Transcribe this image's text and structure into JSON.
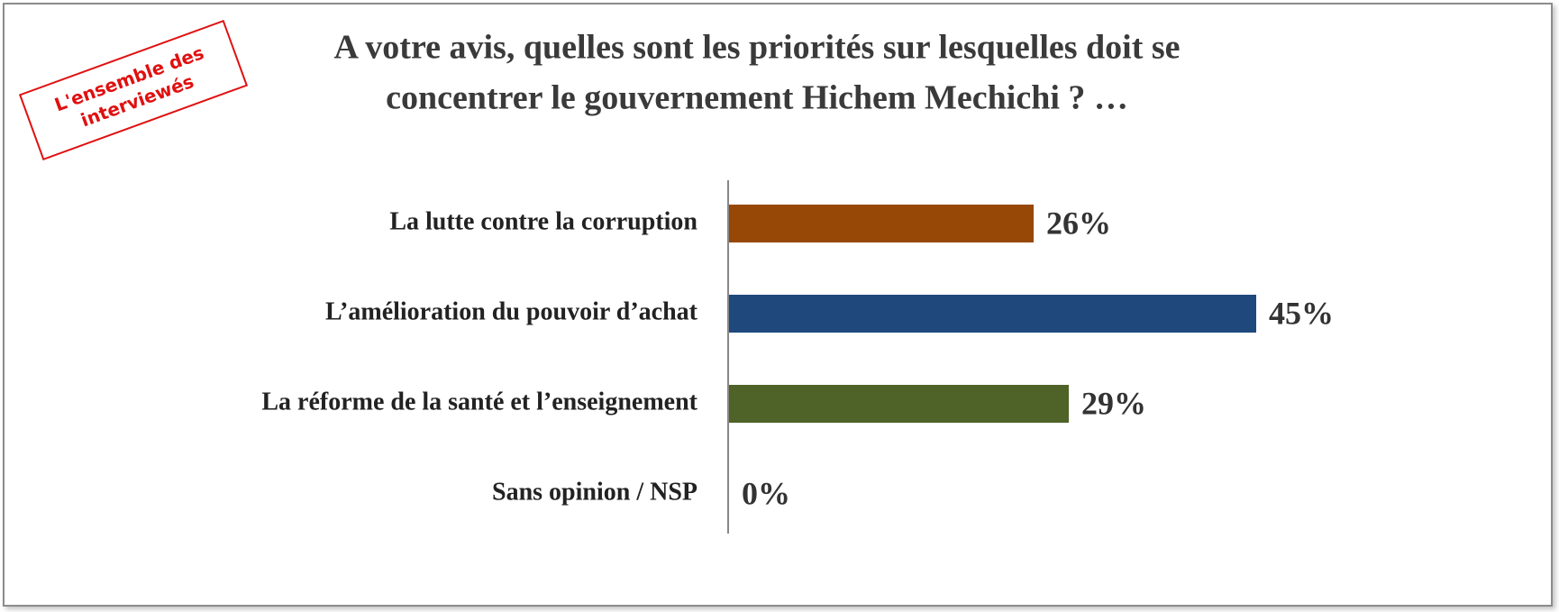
{
  "stamp": [
    "L'ensemble des",
    "interviewés"
  ],
  "chart_data": {
    "type": "bar",
    "orientation": "horizontal",
    "title": [
      "A votre avis, quelles sont les priorités sur lesquelles doit se",
      "concentrer le gouvernement Hichem Mechichi ? …"
    ],
    "categories": [
      "La lutte contre la corruption",
      "L’amélioration du pouvoir d’achat",
      "La  réforme de la santé et l’enseignement",
      "Sans opinion / NSP"
    ],
    "values": [
      26,
      45,
      29,
      0
    ],
    "value_labels": [
      "26%",
      "45%",
      "29%",
      "0%"
    ],
    "colors": [
      "#974706",
      "#1f497d",
      "#4f6228",
      "#7f7f7f"
    ],
    "xlim": [
      0,
      50
    ]
  }
}
